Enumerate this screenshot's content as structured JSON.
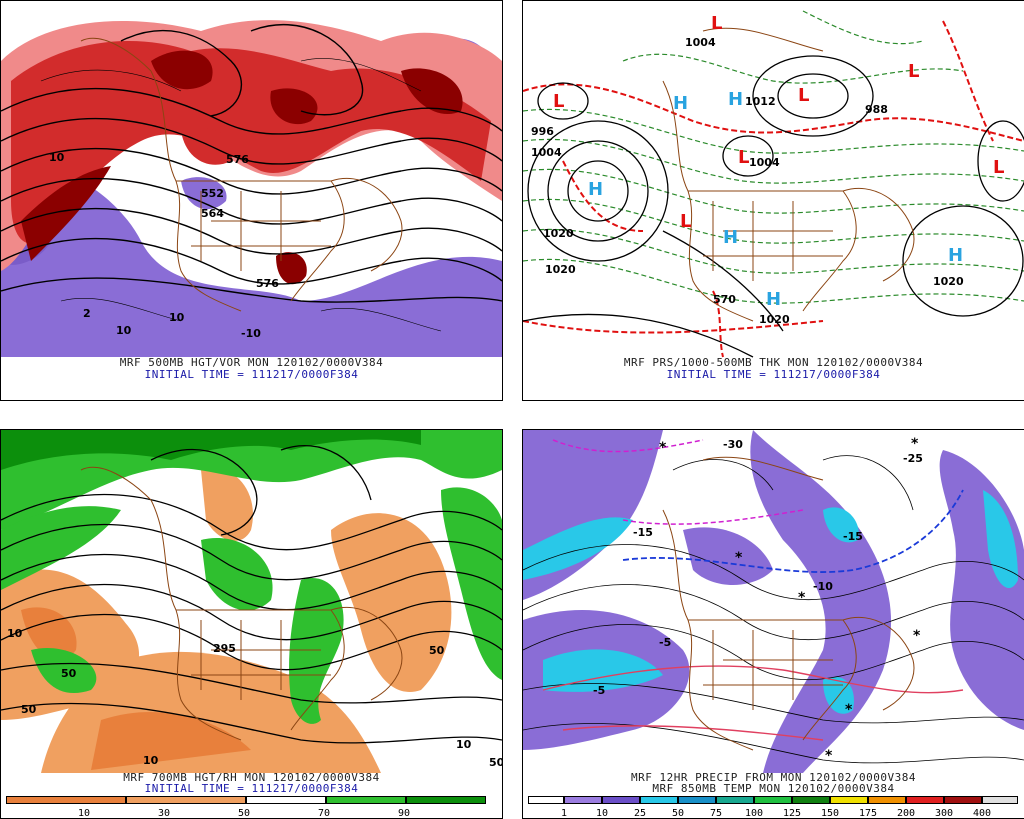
{
  "panels": {
    "p1": {
      "title_line1": "MRF 500MB HGT/VOR MON 120102/0000V384",
      "title_line2": "INITIAL TIME = 111217/0000F384",
      "labels": [
        "552",
        "564",
        "576",
        "576",
        "10",
        "10",
        "-10",
        "2",
        "10"
      ]
    },
    "p2": {
      "title_line1": "MRF PRS/1000-500MB THK MON 120102/0000V384",
      "title_line2": "INITIAL TIME = 111217/0000F384",
      "labels": [
        "1004",
        "996",
        "1004",
        "1020",
        "1020",
        "1020",
        "1020",
        "988",
        "1012",
        "570",
        "1004"
      ],
      "highs": [
        "H",
        "H",
        "H",
        "H",
        "H",
        "H"
      ],
      "lows": [
        "L",
        "L",
        "L",
        "L",
        "L",
        "L",
        "L"
      ]
    },
    "p3": {
      "title_line1": "MRF 700MB HGT/RH MON 120102/0000V384",
      "title_line2": "INITIAL TIME = 111217/0000F384",
      "labels": [
        "10",
        "50",
        "10",
        "50",
        "50",
        "295",
        "10",
        "50"
      ],
      "colorbar_ticks": [
        "10",
        "30",
        "50",
        "70",
        "90"
      ]
    },
    "p4": {
      "title_line1": "MRF 12HR PRECIP FROM MON 120102/0000V384",
      "title_line2": "MRF 850MB TEMP MON 120102/0000V384",
      "labels": [
        "-30",
        "-25",
        "-15",
        "-10",
        "-5",
        "-5",
        "-15"
      ],
      "colorbar_ticks": [
        "1",
        "10",
        "25",
        "50",
        "75",
        "100",
        "125",
        "150",
        "175",
        "200",
        "300",
        "400"
      ]
    }
  },
  "colors": {
    "vort_dark": "#8b0000",
    "vort_red": "#d22c2c",
    "vort_light": "#f08a8a",
    "vort_neg": "#8a6dd6",
    "rh_green_dark": "#0c8f0c",
    "rh_green": "#2fbf2f",
    "rh_orange": "#f0a060",
    "rh_orange_dark": "#e8803c",
    "high_blue": "#29a3e0",
    "low_red": "#e01010",
    "thickness_green": "#2a8a2a",
    "border_brown": "#8b4513"
  }
}
